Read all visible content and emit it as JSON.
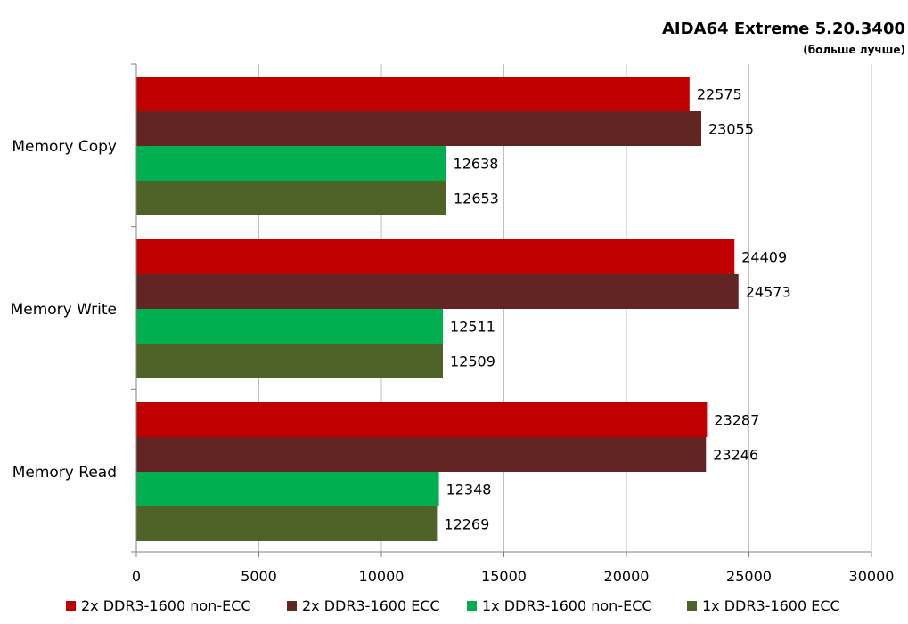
{
  "chart_data": {
    "type": "bar",
    "orientation": "horizontal",
    "title": "AIDA64 Extreme 5.20.3400",
    "subtitle": "(больше лучше)",
    "categories": [
      "Memory Copy",
      "Memory Write",
      "Memory Read"
    ],
    "series": [
      {
        "name": "2x DDR3-1600 non-ECC",
        "color": "#c00000",
        "values": [
          22575,
          24409,
          23287
        ]
      },
      {
        "name": "2x DDR3-1600 ECC",
        "color": "#632523",
        "values": [
          23055,
          24573,
          23246
        ]
      },
      {
        "name": "1x DDR3-1600 non-ECC",
        "color": "#00b050",
        "values": [
          12638,
          12511,
          12348
        ]
      },
      {
        "name": "1x DDR3-1600 ECC",
        "color": "#4f6228",
        "values": [
          12653,
          12509,
          12269
        ]
      }
    ],
    "xlim": [
      0,
      30000
    ],
    "xticks": [
      0,
      5000,
      10000,
      15000,
      20000,
      25000,
      30000
    ],
    "xgrid": true,
    "legend_position": "bottom"
  }
}
